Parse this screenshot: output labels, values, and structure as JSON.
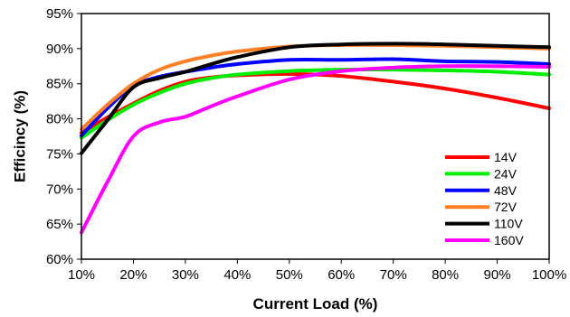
{
  "chart_data": {
    "type": "line",
    "title": "",
    "xlabel": "Current Load (%)",
    "ylabel": "Efficincy (%)",
    "xlim": [
      10,
      100
    ],
    "ylim": [
      60,
      95
    ],
    "xticks": [
      10,
      20,
      30,
      40,
      50,
      60,
      70,
      80,
      90,
      100
    ],
    "yticks": [
      60,
      65,
      70,
      75,
      80,
      85,
      90,
      95
    ],
    "xtick_labels": [
      "10%",
      "20%",
      "30%",
      "40%",
      "50%",
      "60%",
      "70%",
      "80%",
      "90%",
      "100%"
    ],
    "ytick_labels": [
      "60%",
      "65%",
      "70%",
      "75%",
      "80%",
      "85%",
      "90%",
      "95%"
    ],
    "grid": false,
    "legend": "bottom-right",
    "x": [
      10,
      15,
      20,
      25,
      30,
      35,
      40,
      50,
      60,
      70,
      80,
      90,
      100
    ],
    "series": [
      {
        "name": "14V",
        "color": "#ff0000",
        "values": [
          78.0,
          80.2,
          82.2,
          84.0,
          85.3,
          85.9,
          86.2,
          86.4,
          86.1,
          85.3,
          84.3,
          83.0,
          81.5
        ]
      },
      {
        "name": "24V",
        "color": "#00ee00",
        "values": [
          77.3,
          79.8,
          82.0,
          83.7,
          85.0,
          85.8,
          86.3,
          86.8,
          87.0,
          87.0,
          86.9,
          86.7,
          86.3
        ]
      },
      {
        "name": "48V",
        "color": "#0000ff",
        "values": [
          77.6,
          81.5,
          84.7,
          86.0,
          86.7,
          87.3,
          87.8,
          88.4,
          88.4,
          88.5,
          88.2,
          88.1,
          87.8
        ]
      },
      {
        "name": "72V",
        "color": "#ff7f27",
        "values": [
          78.5,
          82.0,
          85.0,
          87.0,
          88.2,
          89.0,
          89.6,
          90.3,
          90.5,
          90.5,
          90.4,
          90.2,
          90.0
        ]
      },
      {
        "name": "110V",
        "color": "#000000",
        "values": [
          75.1,
          79.8,
          84.5,
          85.8,
          86.7,
          87.8,
          88.8,
          90.2,
          90.6,
          90.7,
          90.6,
          90.4,
          90.2
        ]
      },
      {
        "name": "160V",
        "color": "#ff00ff",
        "values": [
          63.8,
          71.0,
          77.5,
          79.5,
          80.3,
          81.8,
          83.2,
          85.6,
          86.8,
          87.3,
          87.5,
          87.5,
          87.4
        ]
      }
    ]
  }
}
